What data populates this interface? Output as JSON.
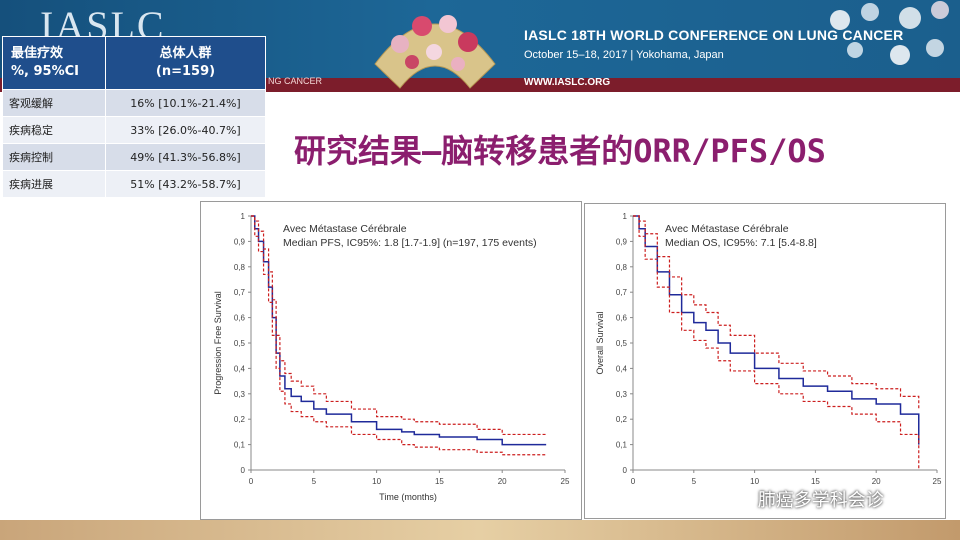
{
  "header": {
    "logo_text": "IASLC",
    "conference_title": "IASLC 18TH WORLD CONFERENCE ON LUNG CANCER",
    "conference_dates": "October 15–18, 2017 | Yokohama, Japan",
    "conference_url": "WWW.IASLC.ORG",
    "conference_tag": "NG CANCER",
    "colors": {
      "banner": "#1d6797",
      "band": "#7c1d2b"
    }
  },
  "table": {
    "header_col1": "最佳疗效\n%, 95%CI",
    "header_col2": "总体人群\n(n=159)",
    "rows": [
      {
        "label": "客观缓解",
        "value": "16% [10.1%-21.4%]"
      },
      {
        "label": "疾病稳定",
        "value": "33% [26.0%-40.7%]"
      },
      {
        "label": "疾病控制",
        "value": "49% [41.3%-56.8%]"
      },
      {
        "label": "疾病进展",
        "value": "51% [43.2%-58.7%]"
      }
    ],
    "colors": {
      "header": "#1f4e8c",
      "row_odd": "#d7dde9",
      "row_even": "#edf0f6"
    }
  },
  "slide_title": "研究结果—脑转移患者的ORR/PFS/OS",
  "title_color": "#8b1e6e",
  "watermark": "肺癌多学科会诊",
  "chart_data": [
    {
      "type": "line",
      "title": "Avec Métastase Cérébrale",
      "subtitle": "Median PFS, IC95%: 1.8 [1.7-1.9] (n=197, 175 events)",
      "xlabel": "Time (months)",
      "ylabel": "Progression Free Survival",
      "xlim": [
        0,
        25
      ],
      "ylim": [
        0,
        1
      ],
      "xticks": [
        "0",
        "5",
        "10",
        "15",
        "20",
        "25"
      ],
      "yticks": [
        "0",
        "0,1",
        "0,2",
        "0,3",
        "0,4",
        "0,5",
        "0,6",
        "0,7",
        "0,8",
        "0,9",
        "1"
      ],
      "grid": false,
      "series": [
        {
          "role": "estimate",
          "color": "#1f2a9a",
          "style": "solid",
          "x": [
            0,
            0.3,
            0.6,
            1.0,
            1.4,
            1.7,
            2.0,
            2.3,
            2.7,
            3.2,
            4,
            5,
            6,
            8,
            10,
            12,
            13,
            15,
            18,
            20,
            23.5
          ],
          "y": [
            1,
            0.95,
            0.9,
            0.82,
            0.72,
            0.6,
            0.46,
            0.37,
            0.32,
            0.29,
            0.27,
            0.24,
            0.22,
            0.19,
            0.16,
            0.15,
            0.14,
            0.13,
            0.12,
            0.1,
            0.1
          ]
        },
        {
          "role": "upper-95",
          "color": "#cc1f1f",
          "style": "dashed",
          "x": [
            0,
            0.3,
            0.6,
            1.0,
            1.4,
            1.7,
            2.0,
            2.3,
            2.7,
            3.2,
            4,
            5,
            6,
            8,
            10,
            12,
            13,
            15,
            18,
            20,
            23.5
          ],
          "y": [
            1,
            0.98,
            0.94,
            0.87,
            0.78,
            0.67,
            0.53,
            0.43,
            0.38,
            0.35,
            0.33,
            0.3,
            0.27,
            0.24,
            0.21,
            0.2,
            0.19,
            0.18,
            0.16,
            0.14,
            0.14
          ]
        },
        {
          "role": "lower-95",
          "color": "#cc1f1f",
          "style": "dashed",
          "x": [
            0,
            0.3,
            0.6,
            1.0,
            1.4,
            1.7,
            2.0,
            2.3,
            2.7,
            3.2,
            4,
            5,
            6,
            8,
            10,
            12,
            13,
            15,
            18,
            20,
            23.5
          ],
          "y": [
            1,
            0.92,
            0.86,
            0.77,
            0.66,
            0.53,
            0.4,
            0.31,
            0.26,
            0.23,
            0.21,
            0.19,
            0.17,
            0.14,
            0.12,
            0.1,
            0.09,
            0.08,
            0.07,
            0.06,
            0.06
          ]
        }
      ]
    },
    {
      "type": "line",
      "title": "Avec Métastase Cérébrale",
      "subtitle": "Median OS, IC95%: 7.1 [5.4-8.8]",
      "xlabel": "",
      "ylabel": "Overall Survival",
      "xlim": [
        0,
        25
      ],
      "ylim": [
        0,
        1
      ],
      "xticks": [
        "0",
        "5",
        "10",
        "15",
        "20",
        "25"
      ],
      "yticks": [
        "0",
        "0,1",
        "0,2",
        "0,3",
        "0,4",
        "0,5",
        "0,6",
        "0,7",
        "0,8",
        "0,9",
        "1"
      ],
      "grid": false,
      "series": [
        {
          "role": "estimate",
          "color": "#1f2a9a",
          "style": "solid",
          "x": [
            0,
            0.5,
            1,
            2,
            3,
            4,
            5,
            6,
            7,
            8,
            10,
            12,
            14,
            16,
            18,
            20,
            22,
            23.5,
            23.5
          ],
          "y": [
            1,
            0.95,
            0.88,
            0.78,
            0.69,
            0.62,
            0.58,
            0.55,
            0.5,
            0.46,
            0.4,
            0.36,
            0.33,
            0.31,
            0.28,
            0.26,
            0.22,
            0.2,
            0.1
          ]
        },
        {
          "role": "upper-95",
          "color": "#cc1f1f",
          "style": "dashed",
          "x": [
            0,
            0.5,
            1,
            2,
            3,
            4,
            5,
            6,
            7,
            8,
            10,
            12,
            14,
            16,
            18,
            20,
            22,
            23.5,
            23.5
          ],
          "y": [
            1,
            0.98,
            0.93,
            0.84,
            0.76,
            0.69,
            0.65,
            0.62,
            0.57,
            0.53,
            0.46,
            0.42,
            0.39,
            0.37,
            0.34,
            0.32,
            0.29,
            0.27,
            0.24
          ]
        },
        {
          "role": "lower-95",
          "color": "#cc1f1f",
          "style": "dashed",
          "x": [
            0,
            0.5,
            1,
            2,
            3,
            4,
            5,
            6,
            7,
            8,
            10,
            12,
            14,
            16,
            18,
            20,
            22,
            23.5,
            23.5
          ],
          "y": [
            1,
            0.92,
            0.83,
            0.72,
            0.62,
            0.55,
            0.51,
            0.48,
            0.43,
            0.39,
            0.34,
            0.3,
            0.27,
            0.25,
            0.22,
            0.19,
            0.14,
            0.12,
            0.0
          ]
        }
      ]
    }
  ]
}
